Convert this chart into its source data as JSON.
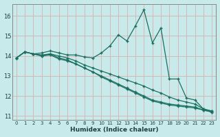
{
  "xlabel": "Humidex (Indice chaleur)",
  "bg_color": "#c8eaea",
  "grid_color": "#d4b8b8",
  "line_color": "#1a6e60",
  "xlim": [
    -0.5,
    23.5
  ],
  "ylim": [
    10.8,
    16.6
  ],
  "yticks": [
    11,
    12,
    13,
    14,
    15,
    16
  ],
  "xticks": [
    0,
    1,
    2,
    3,
    4,
    5,
    6,
    7,
    8,
    9,
    10,
    11,
    12,
    13,
    14,
    15,
    16,
    17,
    18,
    19,
    20,
    21,
    22,
    23
  ],
  "line1": [
    13.9,
    14.2,
    14.1,
    14.15,
    14.25,
    14.15,
    14.05,
    14.05,
    13.95,
    13.9,
    14.15,
    14.5,
    15.05,
    14.75,
    15.5,
    16.3,
    14.65,
    15.4,
    12.85,
    12.85,
    11.9,
    11.8,
    11.35,
    11.25
  ],
  "line2": [
    13.9,
    14.2,
    14.1,
    14.05,
    14.1,
    14.0,
    13.9,
    13.75,
    13.55,
    13.4,
    13.25,
    13.1,
    12.95,
    12.8,
    12.65,
    12.5,
    12.3,
    12.15,
    11.95,
    11.8,
    11.7,
    11.6,
    11.35,
    11.25
  ],
  "line3": [
    13.9,
    14.2,
    14.1,
    14.0,
    14.1,
    13.9,
    13.8,
    13.6,
    13.4,
    13.2,
    13.0,
    12.8,
    12.6,
    12.4,
    12.2,
    12.0,
    11.8,
    11.7,
    11.6,
    11.55,
    11.5,
    11.45,
    11.3,
    11.2
  ],
  "line4": [
    13.9,
    14.2,
    14.1,
    14.0,
    14.05,
    13.85,
    13.75,
    13.6,
    13.4,
    13.2,
    12.95,
    12.75,
    12.55,
    12.35,
    12.15,
    11.95,
    11.75,
    11.65,
    11.55,
    11.5,
    11.45,
    11.4,
    11.3,
    11.2
  ]
}
